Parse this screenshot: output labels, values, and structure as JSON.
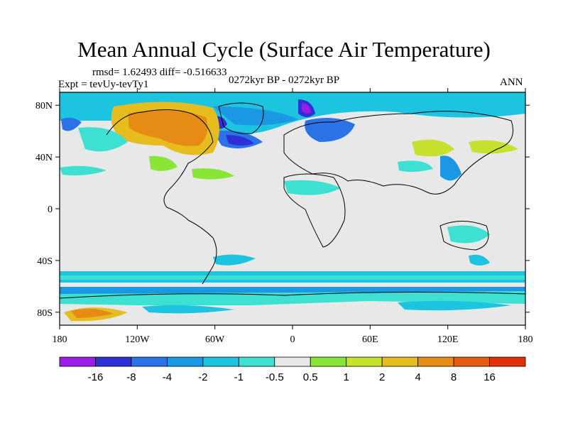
{
  "title": "Mean Annual Cycle (Surface Air Temperature)",
  "stats": "rmsd= 1.62493 diff= -0.516633",
  "experiment": "Expt = tevUy-tevTy1",
  "period": "0272kyr BP - 0272kyr BP",
  "season": "ANN",
  "lat_ticks": [
    "80N",
    "40N",
    "0",
    "40S",
    "80S"
  ],
  "lat_values": [
    80,
    40,
    0,
    -40,
    -80
  ],
  "lon_ticks": [
    "180",
    "120W",
    "60W",
    "0",
    "60E",
    "120E",
    "180"
  ],
  "lon_values": [
    -180,
    -120,
    -60,
    0,
    60,
    120,
    180
  ],
  "lat_range": [
    -90,
    90
  ],
  "lon_range": [
    -180,
    180
  ],
  "colorbar": {
    "colors": [
      "#9a1ce6",
      "#2f2fd6",
      "#2a72e6",
      "#1a98e4",
      "#1cc4e0",
      "#3ee0d2",
      "#e8e8e8",
      "#8ae636",
      "#c8e02e",
      "#e6bc1e",
      "#e68c14",
      "#e45a10",
      "#e03208"
    ],
    "labels": [
      "-16",
      "-8",
      "-4",
      "-2",
      "-1",
      "-0.5",
      "0.5",
      "1",
      "2",
      "4",
      "8",
      "16"
    ]
  }
}
